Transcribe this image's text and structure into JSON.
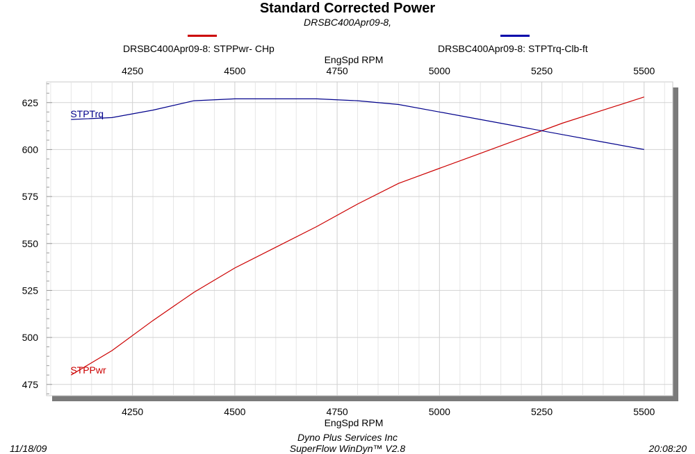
{
  "chart_data": {
    "type": "line",
    "title": "Standard Corrected Power",
    "subtitle": "DRSBC400Apr09-8,",
    "xlabel": "EngSpd  RPM",
    "x_ticks": [
      4250,
      4500,
      4750,
      5000,
      5250,
      5500
    ],
    "y_ticks": [
      475,
      500,
      525,
      550,
      575,
      600,
      625
    ],
    "xlim": [
      4040,
      5570
    ],
    "ylim": [
      469,
      636
    ],
    "grid": true,
    "legend_placement": "top",
    "series": [
      {
        "name": "DRSBC400Apr09-8: STPPwr- CHp",
        "label": "STPPwr",
        "color": "#cc0000",
        "x": [
          4100,
          4200,
          4300,
          4400,
          4500,
          4600,
          4700,
          4800,
          4900,
          5000,
          5100,
          5200,
          5300,
          5400,
          5500
        ],
        "y": [
          480,
          493,
          509,
          524,
          537,
          548,
          559,
          571,
          582,
          590,
          598,
          606,
          614,
          621,
          628
        ]
      },
      {
        "name": "DRSBC400Apr09-8: STPTrq-Clb-ft",
        "label": "STPTrq",
        "color": "#00008b",
        "x": [
          4100,
          4200,
          4300,
          4400,
          4500,
          4600,
          4700,
          4800,
          4900,
          5000,
          5100,
          5200,
          5300,
          5400,
          5500
        ],
        "y": [
          616,
          617,
          621,
          626,
          627,
          627,
          627,
          626,
          624,
          620,
          616,
          612,
          608,
          604,
          600
        ]
      }
    ]
  },
  "footer": {
    "date": "11/18/09",
    "time": "20:08:20",
    "company": "Dyno Plus Services Inc",
    "software": "SuperFlow WinDyn™ V2.8"
  }
}
